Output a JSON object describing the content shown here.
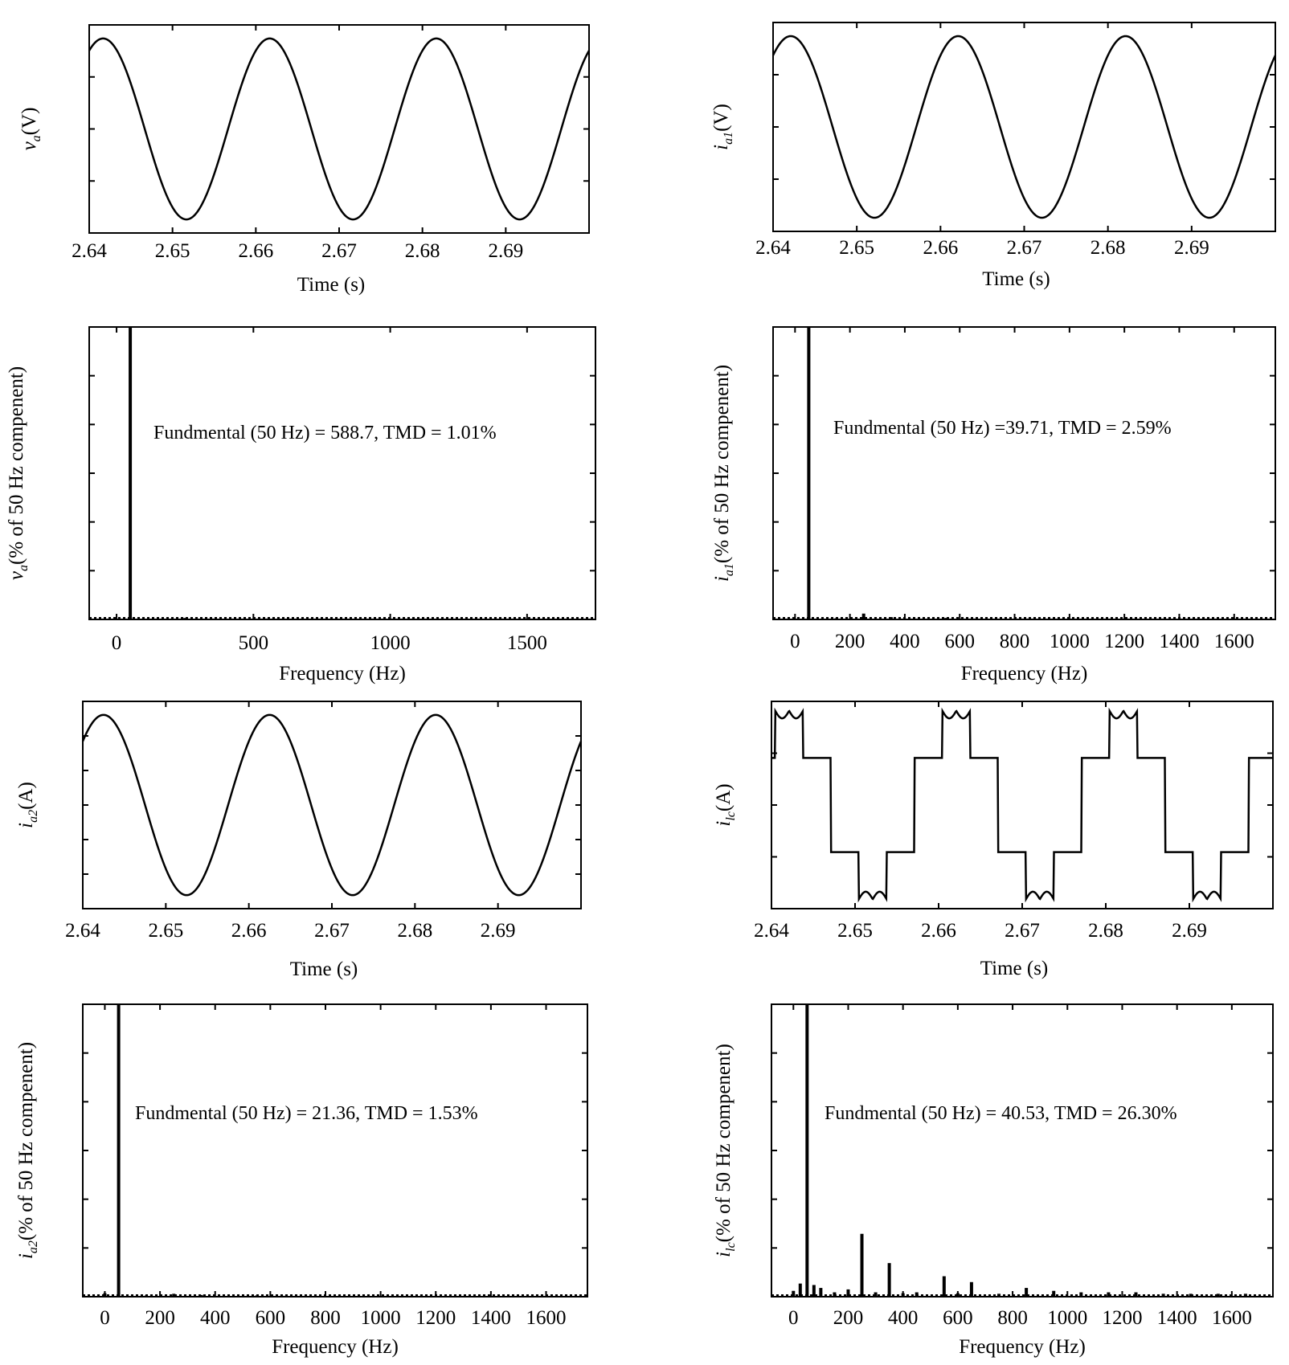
{
  "chart_data": [
    {
      "id": "va-time",
      "type": "line",
      "xlabel": "Time (s)",
      "ylabel": {
        "main": "v",
        "sub": "a",
        "tail": "(V)"
      },
      "xlim": [
        2.64,
        2.7
      ],
      "ylim": [
        -1.15,
        1.15
      ],
      "xticks": [
        2.64,
        2.65,
        2.66,
        2.67,
        2.68,
        2.69
      ],
      "xtick_labels": [
        "2.64",
        "2.65",
        "2.66",
        "2.67",
        "2.68",
        "2.69"
      ],
      "yticks_count": 3,
      "waveform": {
        "kind": "sine",
        "amplitude": 1.0,
        "phase_deg": 60,
        "frequency_hz": 50
      }
    },
    {
      "id": "ia1-time",
      "type": "line",
      "xlabel": "Time (s)",
      "ylabel": {
        "main": "i",
        "sub": "a1",
        "tail": "(V)"
      },
      "xlim": [
        2.64,
        2.7
      ],
      "ylim": [
        -1.15,
        1.15
      ],
      "xticks": [
        2.64,
        2.65,
        2.66,
        2.67,
        2.68,
        2.69
      ],
      "xtick_labels": [
        "2.64",
        "2.65",
        "2.66",
        "2.67",
        "2.68",
        "2.69"
      ],
      "yticks_count": 3,
      "waveform": {
        "kind": "sine",
        "amplitude": 1.0,
        "phase_deg": 52,
        "frequency_hz": 50
      }
    },
    {
      "id": "va-fft",
      "type": "bar",
      "xlabel": "Frequency (Hz)",
      "ylabel": {
        "main": "v",
        "sub": "a",
        "tail": "(% of 50 Hz compenent)"
      },
      "xlim": [
        -100,
        1750
      ],
      "ylim": [
        0,
        100
      ],
      "xticks": [
        0,
        500,
        1000,
        1500
      ],
      "xtick_labels": [
        "0",
        "500",
        "1000",
        "1500"
      ],
      "yticks_count": 5,
      "annotation": "Fundmental (50 Hz) = 588.7, TMD = 1.01%",
      "spectrum": {
        "frequencies": [
          50,
          250,
          350,
          550,
          650,
          850,
          950,
          1150
        ],
        "values": [
          100,
          0.5,
          0.3,
          0.3,
          0.2,
          0.2,
          0.1,
          0.1
        ]
      }
    },
    {
      "id": "ia1-fft",
      "type": "bar",
      "xlabel": "Frequency (Hz)",
      "ylabel": {
        "main": "i",
        "sub": "a1",
        "tail": "(% of 50 Hz compenent)"
      },
      "xlim": [
        -80,
        1750
      ],
      "ylim": [
        0,
        100
      ],
      "xticks": [
        0,
        200,
        400,
        600,
        800,
        1000,
        1200,
        1400,
        1600
      ],
      "xtick_labels": [
        "0",
        "200",
        "400",
        "600",
        "800",
        "1000",
        "1200",
        "1400",
        "1600"
      ],
      "yticks_count": 5,
      "annotation": "Fundmental (50 Hz) =39.71, TMD = 2.59%",
      "spectrum": {
        "frequencies": [
          50,
          150,
          250,
          350,
          550,
          650,
          850,
          950
        ],
        "values": [
          100,
          0.4,
          2.0,
          0.8,
          0.5,
          0.3,
          0.3,
          0.2
        ]
      }
    },
    {
      "id": "ia2-time",
      "type": "line",
      "xlabel": "Time (s)",
      "ylabel": {
        "main": "i",
        "sub": "a2",
        "tail": "(A)"
      },
      "xlim": [
        2.64,
        2.7
      ],
      "ylim": [
        -1.15,
        1.15
      ],
      "xticks": [
        2.64,
        2.65,
        2.66,
        2.67,
        2.68,
        2.69
      ],
      "xtick_labels": [
        "2.64",
        "2.65",
        "2.66",
        "2.67",
        "2.68",
        "2.69"
      ],
      "yticks_count": 5,
      "waveform": {
        "kind": "sine",
        "amplitude": 1.0,
        "phase_deg": 45,
        "frequency_hz": 50
      }
    },
    {
      "id": "ilc-time",
      "type": "line",
      "xlabel": "Time (s)",
      "ylabel": {
        "main": "i",
        "sub": "lc",
        "tail": "(A)"
      },
      "xlim": [
        2.64,
        2.7
      ],
      "ylim": [
        -1.1,
        1.1
      ],
      "xticks": [
        2.64,
        2.65,
        2.66,
        2.67,
        2.68,
        2.69
      ],
      "xtick_labels": [
        "2.64",
        "2.65",
        "2.66",
        "2.67",
        "2.68",
        "2.69"
      ],
      "yticks_count": 3,
      "waveform": {
        "kind": "six-step",
        "amplitude": 1.0,
        "phase_deg": 52,
        "frequency_hz": 50
      }
    },
    {
      "id": "ia2-fft",
      "type": "bar",
      "xlabel": "Frequency (Hz)",
      "ylabel": {
        "main": "i",
        "sub": "a2",
        "tail": "(% of 50 Hz compenent)"
      },
      "xlim": [
        -80,
        1750
      ],
      "ylim": [
        0,
        100
      ],
      "xticks": [
        0,
        200,
        400,
        600,
        800,
        1000,
        1200,
        1400,
        1600
      ],
      "xtick_labels": [
        "0",
        "200",
        "400",
        "600",
        "800",
        "1000",
        "1200",
        "1400",
        "1600"
      ],
      "yticks_count": 5,
      "annotation": "Fundmental (50 Hz) = 21.36, TMD = 1.53%",
      "spectrum": {
        "frequencies": [
          0,
          50,
          150,
          250,
          350,
          550,
          650,
          850
        ],
        "values": [
          1.2,
          100,
          0.4,
          1.0,
          0.6,
          0.4,
          0.3,
          0.3
        ]
      }
    },
    {
      "id": "ilc-fft",
      "type": "bar",
      "xlabel": "Frequency (Hz)",
      "ylabel": {
        "main": "i",
        "sub": "lc",
        "tail": "(% of 50 Hz compenent)"
      },
      "xlim": [
        -80,
        1750
      ],
      "ylim": [
        0,
        100
      ],
      "xticks": [
        0,
        200,
        400,
        600,
        800,
        1000,
        1200,
        1400,
        1600
      ],
      "xtick_labels": [
        "0",
        "200",
        "400",
        "600",
        "800",
        "1000",
        "1200",
        "1400",
        "1600"
      ],
      "yticks_count": 5,
      "annotation": "Fundmental (50 Hz) = 40.53, TMD = 26.30%",
      "spectrum": {
        "frequencies": [
          0,
          25,
          50,
          75,
          100,
          150,
          200,
          250,
          300,
          350,
          400,
          450,
          550,
          600,
          650,
          750,
          850,
          950,
          1050,
          1150,
          1250,
          1350,
          1450,
          1550,
          1650
        ],
        "values": [
          2.0,
          4.5,
          100,
          4.0,
          3.0,
          1.5,
          2.5,
          21.5,
          1.5,
          11.5,
          1.2,
          1.5,
          7.0,
          1.2,
          5.0,
          1.0,
          3.0,
          2.0,
          1.5,
          1.5,
          1.5,
          1.0,
          1.0,
          1.0,
          1.0
        ]
      }
    }
  ]
}
